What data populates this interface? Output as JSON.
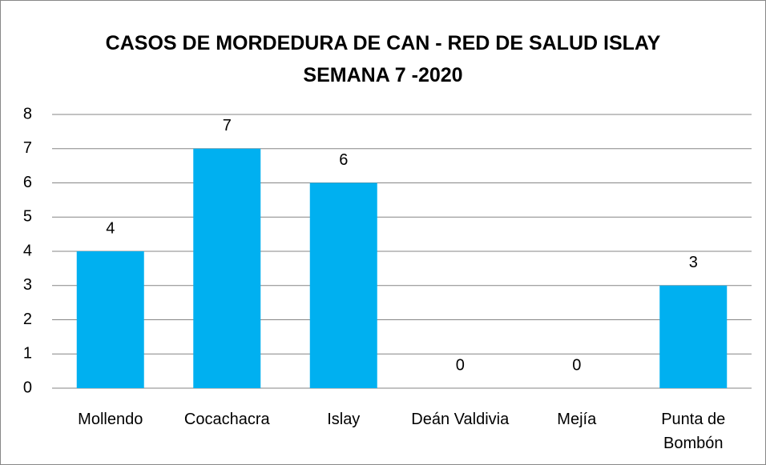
{
  "chart_data": {
    "type": "bar",
    "title": [
      "CASOS DE MORDEDURA DE CAN - RED DE SALUD ISLAY",
      "SEMANA 7 -2020"
    ],
    "categories": [
      "Mollendo",
      "Cocachacra",
      "Islay",
      "Deán Valdivia",
      "Mejía",
      "Punta de Bombón"
    ],
    "values": [
      4,
      7,
      6,
      0,
      0,
      3
    ],
    "color": "#00b0f0",
    "ylim": [
      0,
      8
    ],
    "yticks": [
      0,
      1,
      2,
      3,
      4,
      5,
      6,
      7,
      8
    ],
    "grid": true
  }
}
